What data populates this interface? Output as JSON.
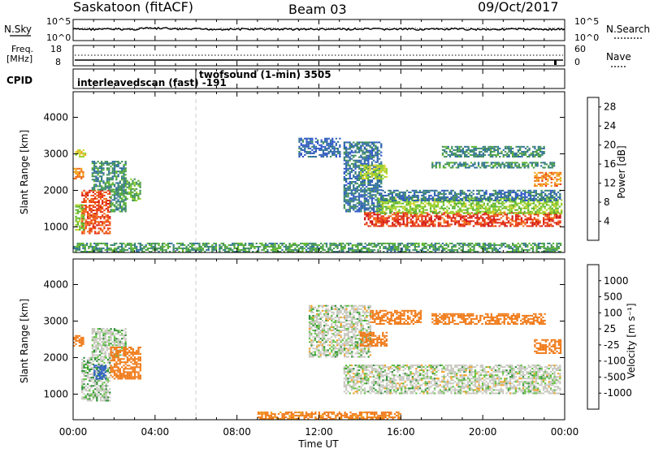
{
  "header": {
    "station": "Saskatoon (fitACF)",
    "beam": "Beam 03",
    "date": "09/Oct/2017"
  },
  "noise_panel": {
    "left_label": "N.Sky",
    "right_label": "N.Search",
    "left_ticks": [
      "10^5",
      "10^0"
    ],
    "right_ticks": [
      "10^5",
      "10^0"
    ]
  },
  "freq_panel": {
    "left_label_1": "Freq.",
    "left_label_2": "[MHz]",
    "left_ticks": [
      "18",
      "8"
    ],
    "right_label": "Nave",
    "right_ticks": [
      "60",
      "0"
    ]
  },
  "cpid_panel": {
    "label": "CPID",
    "entries": [
      {
        "text": "interleavedscan (fast) -191",
        "start_hour": 0
      },
      {
        "text": "twofsound (1-min) 3505",
        "start_hour": 6
      }
    ]
  },
  "x_axis": {
    "label": "Time UT",
    "ticks": [
      "00:00",
      "04:00",
      "08:00",
      "12:00",
      "16:00",
      "20:00",
      "00:00"
    ]
  },
  "chart_data": [
    {
      "type": "heatmap",
      "name": "power",
      "ylabel": "Slant Range [km]",
      "yticks": [
        "1000",
        "2000",
        "3000",
        "4000"
      ],
      "ylim": [
        300,
        4700
      ],
      "xlim": [
        0,
        24
      ],
      "colorbar_label": "Power [dB]",
      "colorbar_ticks": [
        "4",
        "8",
        "12",
        "16",
        "20",
        "24",
        "28"
      ],
      "colors": [
        "#1e28e6",
        "#2d55c8",
        "#2e6e9a",
        "#3f8f5a",
        "#58b22c",
        "#9bd12a",
        "#d8d22a",
        "#f2a41c",
        "#f06a14",
        "#e8340f",
        "#d01010"
      ],
      "clim": [
        0,
        30
      ],
      "regions": [
        {
          "t0": 0.0,
          "t1": 0.5,
          "r0": 2300,
          "r1": 2600,
          "v": 22
        },
        {
          "t0": 0.4,
          "t1": 1.8,
          "r0": 800,
          "r1": 2000,
          "v": 25
        },
        {
          "t0": 0.1,
          "t1": 0.5,
          "r0": 900,
          "r1": 1600,
          "v": 14
        },
        {
          "t0": 0.9,
          "t1": 2.6,
          "r0": 2000,
          "r1": 2800,
          "v": 9
        },
        {
          "t0": 1.8,
          "t1": 2.6,
          "r0": 1400,
          "r1": 2000,
          "v": 10
        },
        {
          "t0": 2.6,
          "t1": 3.3,
          "r0": 1700,
          "r1": 2300,
          "v": 12
        },
        {
          "t0": 0.1,
          "t1": 0.6,
          "r0": 2900,
          "r1": 3100,
          "v": 18
        },
        {
          "t0": 13.2,
          "t1": 15.0,
          "r0": 1400,
          "r1": 3300,
          "v": 7
        },
        {
          "t0": 14.2,
          "t1": 23.8,
          "r0": 1000,
          "r1": 1400,
          "v": 26
        },
        {
          "t0": 14.8,
          "t1": 23.8,
          "r0": 1350,
          "r1": 1800,
          "v": 14
        },
        {
          "t0": 15.0,
          "t1": 23.8,
          "r0": 1700,
          "r1": 2000,
          "v": 7
        },
        {
          "t0": 14.0,
          "t1": 15.3,
          "r0": 2300,
          "r1": 2700,
          "v": 16
        },
        {
          "t0": 17.5,
          "t1": 23.5,
          "r0": 2600,
          "r1": 2750,
          "v": 9
        },
        {
          "t0": 18.0,
          "t1": 23.0,
          "r0": 2900,
          "r1": 3200,
          "v": 9
        },
        {
          "t0": 22.5,
          "t1": 23.8,
          "r0": 2100,
          "r1": 2500,
          "v": 22
        },
        {
          "t0": 11.0,
          "t1": 13.0,
          "r0": 2900,
          "r1": 3400,
          "v": 6
        },
        {
          "t0": 0.0,
          "t1": 23.8,
          "r0": 300,
          "r1": 550,
          "v": 10
        }
      ]
    },
    {
      "type": "heatmap",
      "name": "velocity",
      "ylabel": "Slant Range [km]",
      "yticks": [
        "1000",
        "2000",
        "3000",
        "4000"
      ],
      "ylim": [
        300,
        4700
      ],
      "xlim": [
        0,
        24
      ],
      "colorbar_label": "Velocity [m s⁻¹]",
      "colorbar_ticks": [
        "1000",
        "500",
        "100",
        "25",
        "-25",
        "-100",
        "-500",
        "-1000"
      ],
      "colors": [
        "#1e3ab4",
        "#2f5fc4",
        "#2e8f38",
        "#60c040",
        "#c8c8c0",
        "#f2a020",
        "#f07a18",
        "#e85010",
        "#d61010"
      ],
      "clim": [
        -1000,
        1000
      ],
      "regions": [
        {
          "t0": 0.0,
          "t1": 0.5,
          "r0": 2300,
          "r1": 2600,
          "v": -300
        },
        {
          "t0": 0.4,
          "t1": 1.8,
          "r0": 800,
          "r1": 2000,
          "v": 10
        },
        {
          "t0": 0.9,
          "t1": 2.6,
          "r0": 2000,
          "r1": 2800,
          "v": 5
        },
        {
          "t0": 1.8,
          "t1": 3.3,
          "r0": 1400,
          "r1": 2300,
          "v": -300
        },
        {
          "t0": 1.0,
          "t1": 1.6,
          "r0": 1400,
          "r1": 1800,
          "v": 150
        },
        {
          "t0": 13.2,
          "t1": 23.8,
          "r0": 1000,
          "r1": 1800,
          "v": 0
        },
        {
          "t0": 11.5,
          "t1": 14.5,
          "r0": 2000,
          "r1": 3400,
          "v": 0
        },
        {
          "t0": 14.0,
          "t1": 15.3,
          "r0": 2300,
          "r1": 2700,
          "v": -300
        },
        {
          "t0": 14.5,
          "t1": 17.0,
          "r0": 2900,
          "r1": 3300,
          "v": -250
        },
        {
          "t0": 17.5,
          "t1": 23.0,
          "r0": 2900,
          "r1": 3200,
          "v": -300
        },
        {
          "t0": 22.5,
          "t1": 23.8,
          "r0": 2100,
          "r1": 2500,
          "v": -300
        },
        {
          "t0": 9.0,
          "t1": 16.0,
          "r0": 300,
          "r1": 500,
          "v": -120
        }
      ]
    }
  ]
}
